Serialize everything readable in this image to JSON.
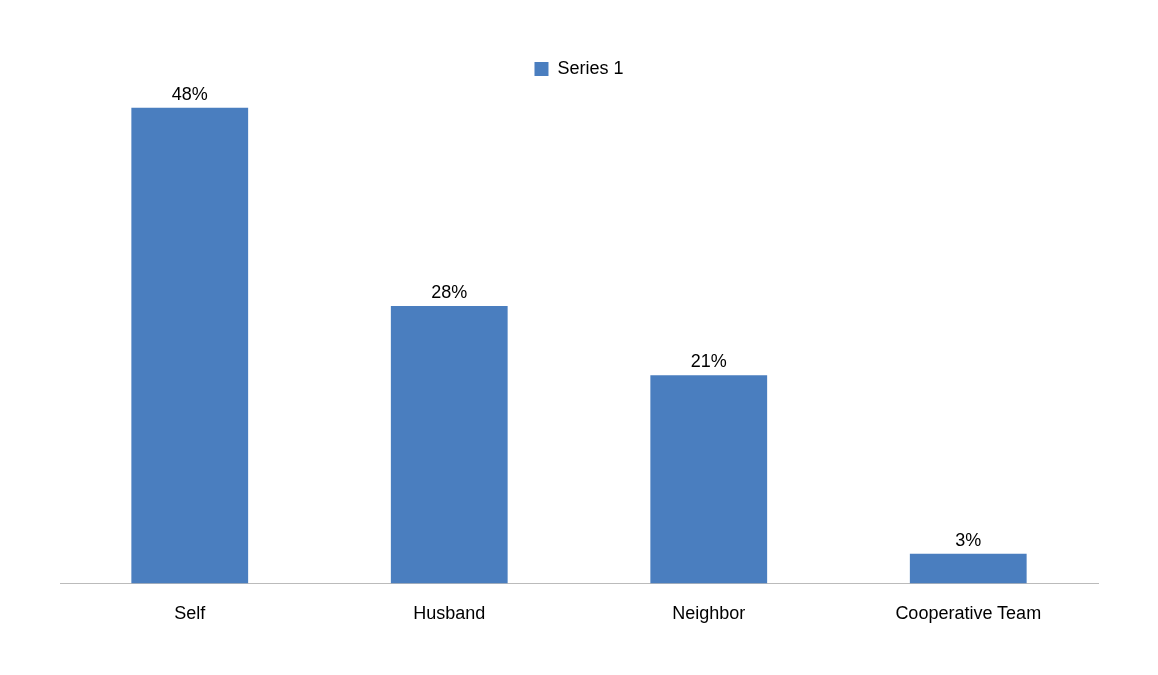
{
  "chart_data": {
    "type": "bar",
    "categories": [
      "Self",
      "Husband",
      "Neighbor",
      "Cooperative Team"
    ],
    "series": [
      {
        "name": "Series 1",
        "color": "#4a7ebf",
        "values": [
          48,
          28,
          21,
          3
        ],
        "value_labels": [
          "48%",
          "28%",
          "21%",
          "3%"
        ]
      }
    ],
    "legend": "top",
    "grid": false
  }
}
